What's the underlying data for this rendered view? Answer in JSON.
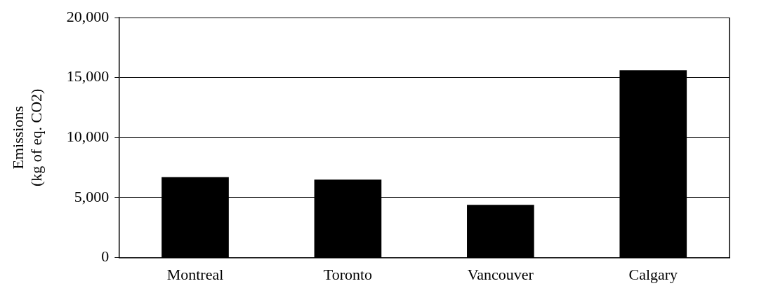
{
  "chart_data": {
    "type": "bar",
    "ylabel": "Emissions\n(kg of eq. CO2)",
    "categories": [
      "Montreal",
      "Toronto",
      "Vancouver",
      "Calgary"
    ],
    "values": [
      6700,
      6500,
      4400,
      15600
    ],
    "color": "#000000",
    "ylim": [
      0,
      20000
    ],
    "yticks": [
      {
        "value": 0,
        "label": "0"
      },
      {
        "value": 5000,
        "label": "5,000"
      },
      {
        "value": 10000,
        "label": "10,000"
      },
      {
        "value": 15000,
        "label": "15,000"
      },
      {
        "value": 20000,
        "label": "20,000"
      }
    ],
    "grid": "y",
    "legend": false
  }
}
